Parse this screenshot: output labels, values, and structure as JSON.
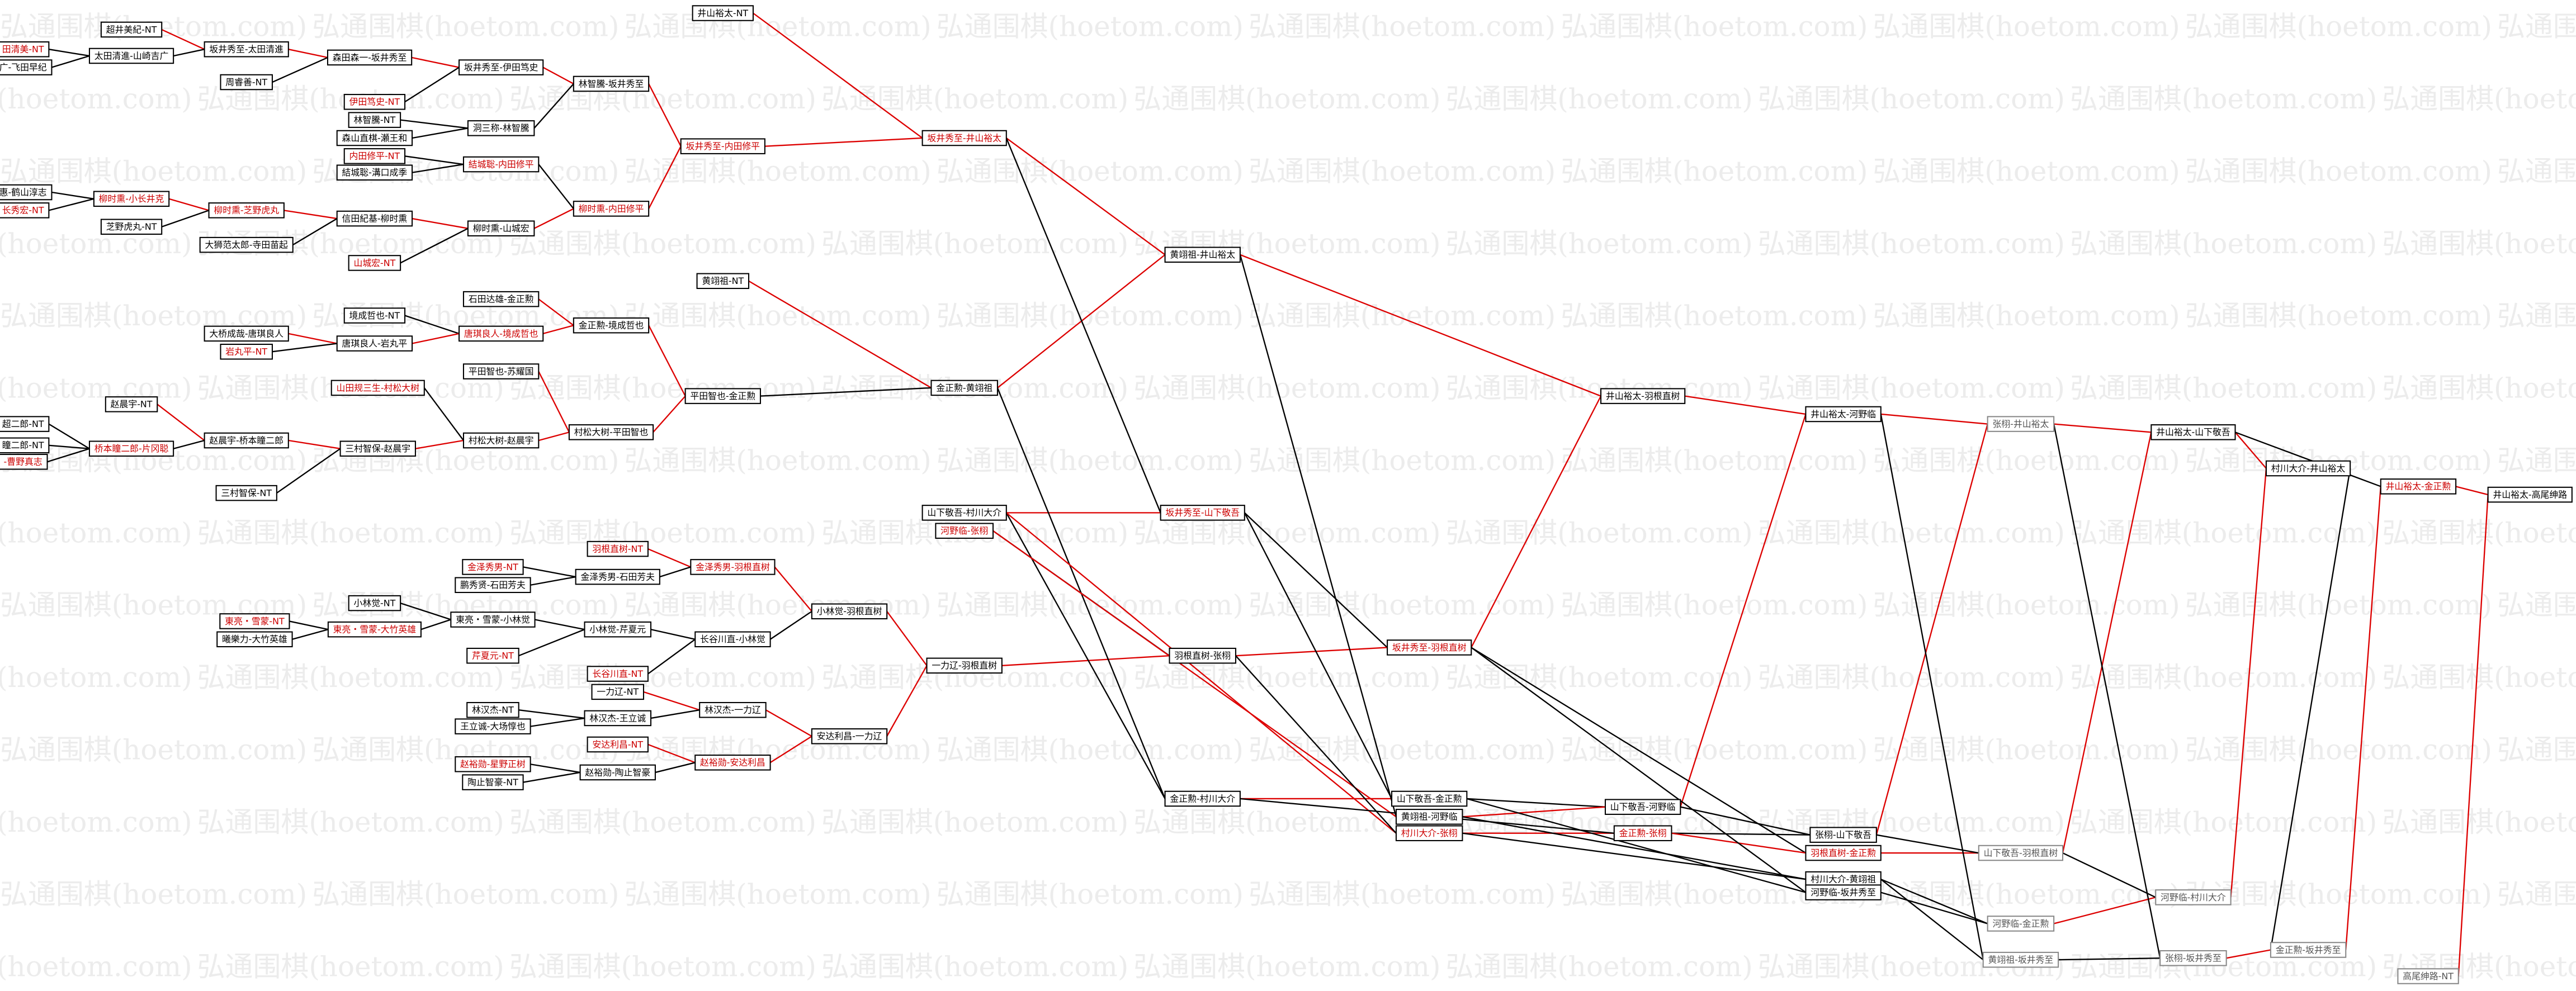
{
  "watermark": "弘通围棋(hoetom.com)",
  "nodes": [
    "田清美-NT",
    "广-飞田早纪",
    "惠-鹤山淳志",
    "长秀宏-NT",
    "超二郎-NT",
    "瞳二郎-NT",
    "-曹野真志",
    "超井美紀-NT",
    "太田清進-山崎吉广",
    "柳时熏-小长井克",
    "芝野虎丸-NT",
    "赵晨宇-NT",
    "桥本瞳二郎-片冈聪",
    "坂井秀至-太田清進",
    "周睿善-NT",
    "柳时熏-芝野虎丸",
    "大狮范太郎-寺田苗起",
    "大桥成哉-唐琪良人",
    "岩丸平-NT",
    "赵晨宇-桥本瞳二郎",
    "三村智保-NT",
    "東亮・雪蒙-NT",
    "曦樂力-大竹英雄",
    "森田森一-坂井秀至",
    "伊田笃史-NT",
    "林智騰-NT",
    "森山直棋-瀬王和",
    "内田修平-NT",
    "結城聡-溝口成季",
    "信田紀基-柳时熏",
    "山城宏-NT",
    "境成哲也-NT",
    "唐琪良人-岩丸平",
    "山田规三生-村松大树",
    "三村智保-赵晨宇",
    "小林觉-NT",
    "東亮・雪蒙-大竹英雄",
    "坂井秀至-伊田笃史",
    "洞三称-林智騰",
    "結城聡-内田修平",
    "柳时熏-山城宏",
    "石田达雄-金正勲",
    "唐琪良人-境成哲也",
    "平田智也-苏耀国",
    "村松大树-赵晨宇",
    "金泽秀男-NT",
    "鹏秀贤-石田芳夫",
    "東亮・雪蒙-小林觉",
    "芹夏元-NT",
    "林汉杰-NT",
    "王立诚-大场惇也",
    "赵裕勋-星野正树",
    "陶止智豪-NT",
    "林智騰-坂井秀至",
    "柳时熏-内田修平",
    "金正勲-境成哲也",
    "村松大树-平田智也",
    "羽根直树-NT",
    "金泽秀男-石田芳夫",
    "小林觉-芹夏元",
    "长谷川直-NT",
    "一力辽-NT",
    "林汉杰-王立诚",
    "安达利昌-NT",
    "赵裕勋-陶止智豪",
    "井山裕太-NT",
    "坂井秀至-内田修平",
    "黄翊祖-NT",
    "平田智也-金正勲",
    "金泽秀男-羽根直树",
    "长谷川直-小林觉",
    "林汉杰-一力辽",
    "赵裕勋-安达利昌",
    "小林觉-羽根直树",
    "安达利昌-一力辽",
    "坂井秀至-井山裕太",
    "金正勲-黄翊祖",
    "山下敬吾-村川大介",
    "河野临-张栩",
    "一力辽-羽根直树",
    "黄翊祖-井山裕太",
    "坂井秀至-山下敬吾",
    "羽根直树-张栩",
    "金正勲-村川大介",
    "坂井秀至-羽根直树",
    "山下敬吾-金正勲",
    "黄翊祖-河野临",
    "村川大介-张栩",
    "井山裕太-羽根直树",
    "山下敬吾-河野临",
    "金正勲-张栩",
    "井山裕太-河野临",
    "张栩-山下敬吾",
    "羽根直树-金正勲",
    "村川大介-黄翊祖",
    "河野临-坂井秀至",
    "张栩-井山裕太",
    "山下敬吾-羽根直树",
    "河野临-金正勲",
    "黄翊祖-坂井秀至",
    "井山裕太-山下敬吾",
    "河野临-村川大介",
    "张栩-坂井秀至",
    "村川大介-井山裕太",
    "金正勲-坂井秀至",
    "井山裕太-金正勲",
    "高尾绅路-NT",
    "井山裕太-高尾绅路"
  ]
}
